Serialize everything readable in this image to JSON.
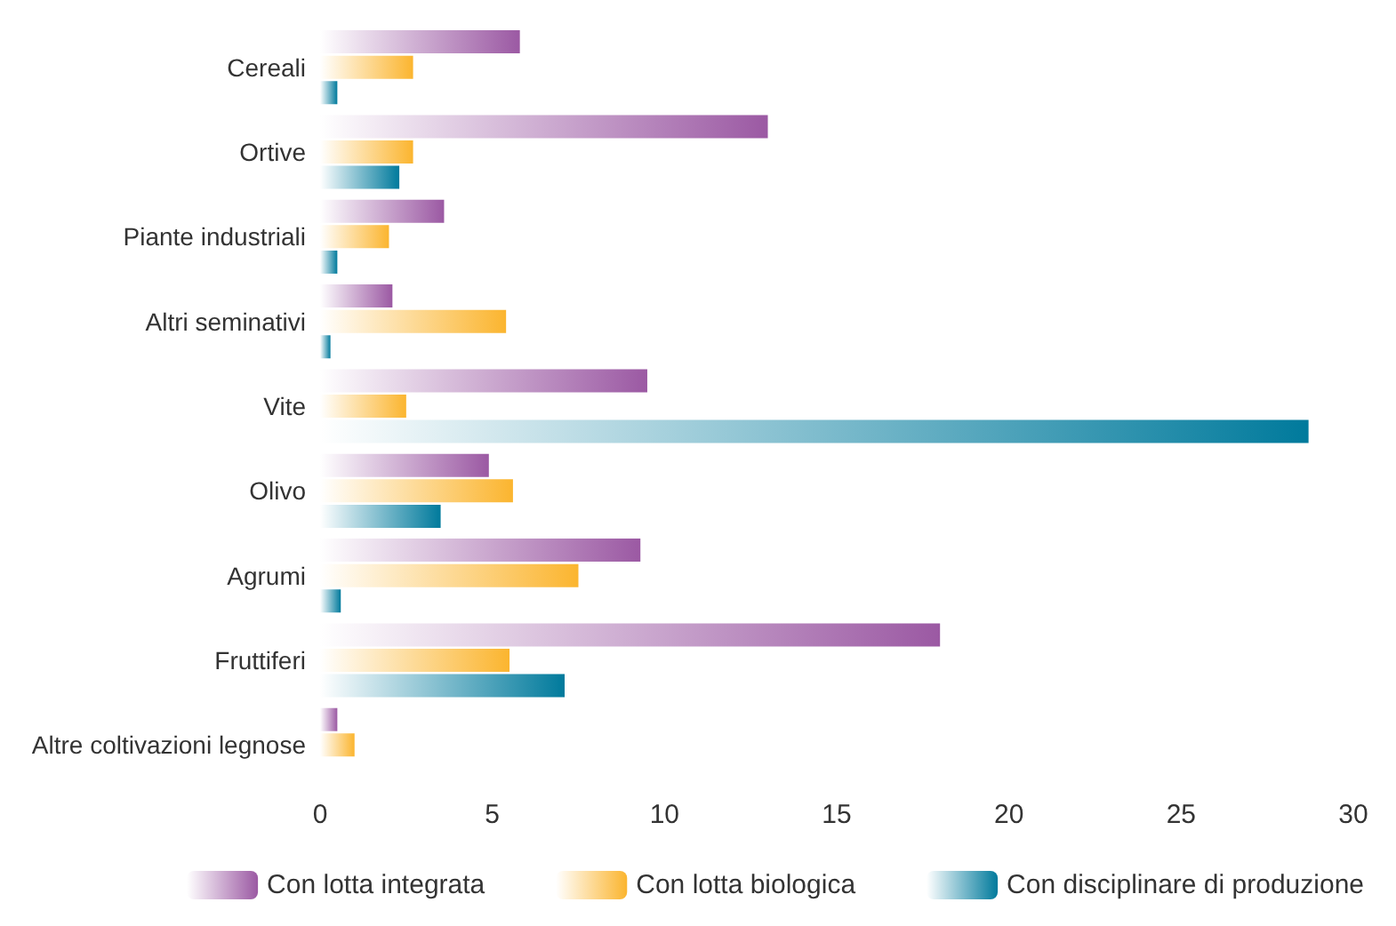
{
  "chart_data": {
    "type": "bar",
    "orientation": "horizontal",
    "categories": [
      "Cereali",
      "Ortive",
      "Piante industriali",
      "Altri seminativi",
      "Vite",
      "Olivo",
      "Agrumi",
      "Fruttiferi",
      "Altre coltivazioni legnose"
    ],
    "series": [
      {
        "name": "Con lotta integrata",
        "color": "#9b59a3",
        "values": [
          5.8,
          13.0,
          3.6,
          2.1,
          9.5,
          4.9,
          9.3,
          18.0,
          0.5
        ]
      },
      {
        "name": "Con lotta biologica",
        "color": "#fbb52f",
        "values": [
          2.7,
          2.7,
          2.0,
          5.4,
          2.5,
          5.6,
          7.5,
          5.5,
          1.0
        ]
      },
      {
        "name": "Con disciplinare di produzione",
        "color": "#007a9c",
        "values": [
          0.5,
          2.3,
          0.5,
          0.3,
          28.7,
          3.5,
          0.6,
          7.1,
          0
        ]
      }
    ],
    "xlim": [
      0,
      30
    ],
    "xticks": [
      0,
      5,
      10,
      15,
      20,
      25,
      30
    ],
    "grid": false,
    "legend": "bottom"
  }
}
